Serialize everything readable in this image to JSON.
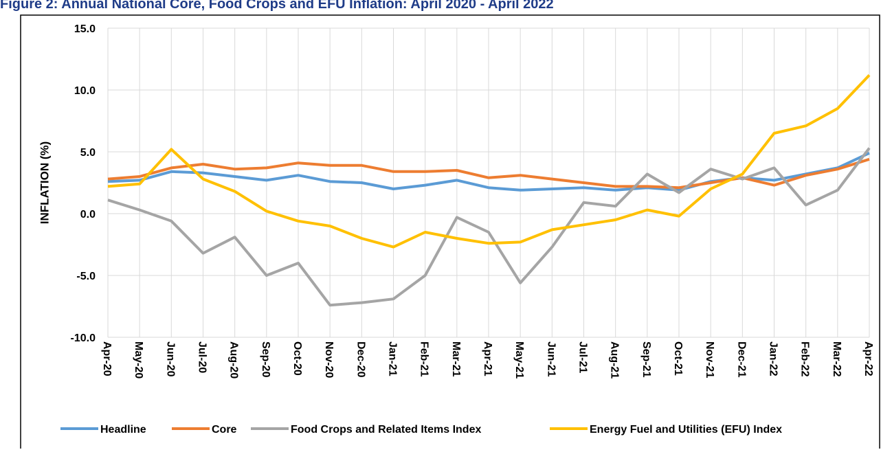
{
  "chart_data": {
    "type": "line",
    "title": "Figure 2: Annual National Core, Food Crops and EFU Inflation: April 2020 - April 2022",
    "y_label": "INFLATION (%)",
    "categories": [
      "Apr-20",
      "May-20",
      "Jun-20",
      "Jul-20",
      "Aug-20",
      "Sep-20",
      "Oct-20",
      "Nov-20",
      "Dec-20",
      "Jan-21",
      "Feb-21",
      "Mar-21",
      "Apr-21",
      "May-21",
      "Jun-21",
      "Jul-21",
      "Aug-21",
      "Sep-21",
      "Oct-21",
      "Nov-21",
      "Dec-21",
      "Jan-22",
      "Feb-22",
      "Mar-22",
      "Apr-22"
    ],
    "series": [
      {
        "name": "Headline",
        "color": "#5b9bd5",
        "values": [
          2.6,
          2.7,
          3.4,
          3.3,
          3.0,
          2.7,
          3.1,
          2.6,
          2.5,
          2.0,
          2.3,
          2.7,
          2.1,
          1.9,
          2.0,
          2.1,
          1.9,
          2.1,
          1.9,
          2.6,
          2.9,
          2.7,
          3.2,
          3.7,
          4.9
        ]
      },
      {
        "name": "Core",
        "color": "#ed7d31",
        "values": [
          2.8,
          3.0,
          3.7,
          4.0,
          3.6,
          3.7,
          4.1,
          3.9,
          3.9,
          3.4,
          3.4,
          3.5,
          2.9,
          3.1,
          2.8,
          2.5,
          2.2,
          2.2,
          2.1,
          2.5,
          2.9,
          2.3,
          3.1,
          3.6,
          4.4
        ]
      },
      {
        "name": "Food Crops and Related Items Index",
        "color": "#a5a5a5",
        "values": [
          1.1,
          0.3,
          -0.6,
          -3.2,
          -1.9,
          -5.0,
          -4.0,
          -7.4,
          -7.2,
          -6.9,
          -5.0,
          -0.3,
          -1.5,
          -5.6,
          -2.7,
          0.9,
          0.6,
          3.2,
          1.7,
          3.6,
          2.8,
          3.7,
          0.7,
          1.9,
          5.3
        ]
      },
      {
        "name": "Energy Fuel and Utilities (EFU) Index",
        "color": "#ffc000",
        "values": [
          2.2,
          2.4,
          5.2,
          2.8,
          1.8,
          0.2,
          -0.6,
          -1.0,
          -2.0,
          -2.7,
          -1.5,
          -2.0,
          -2.4,
          -2.3,
          -1.3,
          -0.9,
          -0.5,
          0.3,
          -0.2,
          2.0,
          3.2,
          6.5,
          7.1,
          8.5,
          11.2
        ]
      }
    ],
    "ylim": [
      -10,
      15
    ],
    "yticks": [
      {
        "value": -10,
        "label": "-10.0"
      },
      {
        "value": -5,
        "label": "-5.0"
      },
      {
        "value": 0,
        "label": "0.0"
      },
      {
        "value": 5,
        "label": "5.0"
      },
      {
        "value": 10,
        "label": "10.0"
      },
      {
        "value": 15,
        "label": "15.0"
      }
    ],
    "grid": true,
    "legend": "bottom"
  }
}
